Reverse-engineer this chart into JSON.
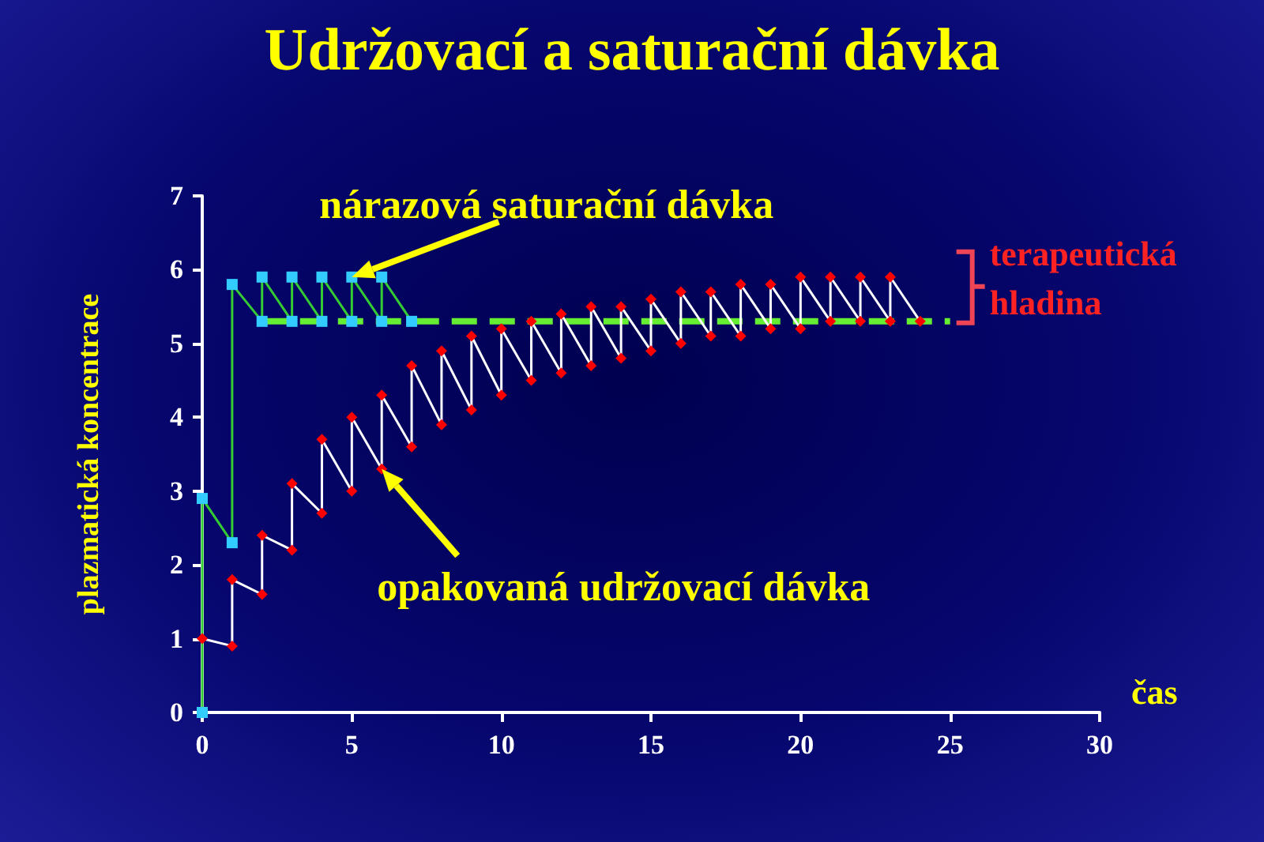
{
  "chart_data": {
    "type": "line",
    "title": "Udržovací a saturační dávka",
    "xlabel": "čas",
    "ylabel": "plazmatická koncentrace",
    "xlim": [
      0,
      30
    ],
    "xticks": [
      0,
      5,
      10,
      15,
      20,
      25,
      30
    ],
    "ylim": [
      0,
      7
    ],
    "yticks": [
      0,
      1,
      2,
      3,
      4,
      5,
      6,
      7
    ],
    "grid": false,
    "series": [
      {
        "color": "#ff0000",
        "marker": "diamond",
        "x": [
          0,
          1,
          1,
          2,
          2,
          3,
          3,
          4,
          4,
          5,
          5,
          6,
          6,
          7,
          7,
          8,
          8,
          9,
          9,
          10,
          10,
          11,
          11,
          12,
          12,
          13,
          13,
          14,
          14,
          15,
          15,
          16,
          16,
          17,
          17,
          18,
          18,
          19,
          19,
          20,
          20,
          21,
          21,
          22,
          22,
          23,
          23,
          24
        ],
        "values": [
          1.0,
          0.9,
          1.8,
          1.6,
          2.4,
          2.2,
          3.1,
          2.7,
          3.7,
          3.0,
          4.0,
          3.3,
          4.3,
          3.6,
          4.7,
          3.9,
          4.9,
          4.1,
          5.1,
          4.3,
          5.2,
          4.5,
          5.3,
          4.6,
          5.4,
          4.7,
          5.5,
          4.8,
          5.5,
          4.9,
          5.6,
          5.0,
          5.7,
          5.1,
          5.7,
          5.1,
          5.8,
          5.2,
          5.8,
          5.2,
          5.9,
          5.3,
          5.9,
          5.3,
          5.9,
          5.3,
          5.9,
          5.3
        ]
      },
      {
        "color": "#33ccff",
        "marker": "square",
        "x": [
          0,
          0,
          1,
          1,
          2,
          2,
          3,
          3,
          4,
          4,
          5,
          5,
          6,
          6,
          7
        ],
        "values": [
          0,
          2.9,
          2.3,
          5.8,
          5.3,
          5.9,
          5.3,
          5.9,
          5.3,
          5.9,
          5.3,
          5.9,
          5.3,
          5.9,
          5.3
        ]
      },
      {
        "color": "#66ee33",
        "marker": "none",
        "line_style": "dashed",
        "x": [
          2,
          25
        ],
        "values": [
          5.3,
          5.3
        ]
      }
    ],
    "annotations": [
      {
        "text": "nárazová saturační dávka",
        "x": 5,
        "y": 5.9
      },
      {
        "text": "opakovaná udržovací dávka",
        "x": 6,
        "y": 3.3
      },
      {
        "text": "terapeutická hladina",
        "x": 25,
        "y": 5.3
      }
    ]
  }
}
